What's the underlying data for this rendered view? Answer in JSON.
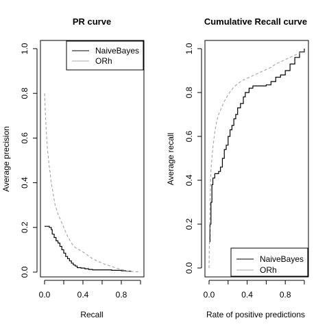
{
  "chart_data": [
    {
      "type": "line",
      "title": "PR curve",
      "xlabel": "Recall",
      "ylabel": "Average precision",
      "xlim": [
        0,
        1
      ],
      "ylim": [
        0,
        1
      ],
      "x_ticks": [
        0.0,
        0.4,
        0.8
      ],
      "x_tick_labels": [
        "0.0",
        "0.4",
        "0.8"
      ],
      "y_ticks": [
        0.0,
        0.2,
        0.4,
        0.6,
        0.8,
        1.0
      ],
      "y_tick_labels": [
        "0.0",
        "0.2",
        "0.4",
        "0.6",
        "0.8",
        "1.0"
      ],
      "legend": {
        "position": "top-right",
        "entries": [
          "NaiveBayes",
          "ORh"
        ]
      },
      "grid": false,
      "series": [
        {
          "name": "NaiveBayes",
          "color": "#000000",
          "dash": "solid",
          "step": true,
          "points": [
            [
              0.0,
              0.205
            ],
            [
              0.03,
              0.205
            ],
            [
              0.05,
              0.2
            ],
            [
              0.07,
              0.19
            ],
            [
              0.08,
              0.17
            ],
            [
              0.1,
              0.155
            ],
            [
              0.12,
              0.14
            ],
            [
              0.14,
              0.13
            ],
            [
              0.16,
              0.115
            ],
            [
              0.18,
              0.1
            ],
            [
              0.2,
              0.085
            ],
            [
              0.22,
              0.07
            ],
            [
              0.24,
              0.06
            ],
            [
              0.26,
              0.05
            ],
            [
              0.28,
              0.04
            ],
            [
              0.3,
              0.032
            ],
            [
              0.32,
              0.027
            ],
            [
              0.34,
              0.02
            ],
            [
              0.38,
              0.018
            ],
            [
              0.42,
              0.015
            ],
            [
              0.46,
              0.012
            ],
            [
              0.5,
              0.01
            ],
            [
              0.6,
              0.01
            ],
            [
              0.7,
              0.008
            ],
            [
              0.8,
              0.006
            ],
            [
              0.85,
              0.004
            ],
            [
              0.9,
              0.002
            ]
          ]
        },
        {
          "name": "ORh",
          "color": "#aaaaaa",
          "dash": "dashed",
          "step": false,
          "points": [
            [
              0.0,
              0.8
            ],
            [
              0.01,
              0.7
            ],
            [
              0.02,
              0.62
            ],
            [
              0.03,
              0.55
            ],
            [
              0.05,
              0.47
            ],
            [
              0.07,
              0.4
            ],
            [
              0.09,
              0.35
            ],
            [
              0.11,
              0.3
            ],
            [
              0.14,
              0.26
            ],
            [
              0.17,
              0.23
            ],
            [
              0.2,
              0.2
            ],
            [
              0.24,
              0.16
            ],
            [
              0.28,
              0.13
            ],
            [
              0.32,
              0.11
            ],
            [
              0.36,
              0.1
            ],
            [
              0.4,
              0.09
            ],
            [
              0.45,
              0.075
            ],
            [
              0.5,
              0.06
            ],
            [
              0.55,
              0.05
            ],
            [
              0.6,
              0.04
            ],
            [
              0.65,
              0.032
            ],
            [
              0.7,
              0.025
            ],
            [
              0.75,
              0.018
            ],
            [
              0.8,
              0.012
            ],
            [
              0.85,
              0.006
            ],
            [
              0.9,
              0.003
            ],
            [
              0.95,
              0.002
            ],
            [
              1.0,
              0.001
            ]
          ]
        }
      ]
    },
    {
      "type": "line",
      "title": "Cumulative Recall curve",
      "xlabel": "Rate of positive predictions",
      "ylabel": "Average recall",
      "xlim": [
        0,
        1
      ],
      "ylim": [
        0,
        1
      ],
      "x_ticks": [
        0.0,
        0.4,
        0.8
      ],
      "x_tick_labels": [
        "0.0",
        "0.4",
        "0.8"
      ],
      "y_ticks": [
        0.0,
        0.2,
        0.4,
        0.6,
        0.8,
        1.0
      ],
      "y_tick_labels": [
        "0.0",
        "0.2",
        "0.4",
        "0.6",
        "0.8",
        "1.0"
      ],
      "legend": {
        "position": "bottom-right",
        "entries": [
          "NaiveBayes",
          "ORh"
        ]
      },
      "grid": false,
      "series": [
        {
          "name": "NaiveBayes",
          "color": "#000000",
          "dash": "solid",
          "step": true,
          "points": [
            [
              0.0,
              0.12
            ],
            [
              0.01,
              0.2
            ],
            [
              0.02,
              0.3
            ],
            [
              0.03,
              0.38
            ],
            [
              0.04,
              0.41
            ],
            [
              0.06,
              0.43
            ],
            [
              0.1,
              0.44
            ],
            [
              0.12,
              0.46
            ],
            [
              0.14,
              0.5
            ],
            [
              0.16,
              0.54
            ],
            [
              0.18,
              0.56
            ],
            [
              0.2,
              0.6
            ],
            [
              0.22,
              0.63
            ],
            [
              0.24,
              0.65
            ],
            [
              0.26,
              0.68
            ],
            [
              0.28,
              0.7
            ],
            [
              0.3,
              0.73
            ],
            [
              0.33,
              0.75
            ],
            [
              0.36,
              0.78
            ],
            [
              0.38,
              0.8
            ],
            [
              0.42,
              0.82
            ],
            [
              0.46,
              0.83
            ],
            [
              0.5,
              0.83
            ],
            [
              0.55,
              0.83
            ],
            [
              0.6,
              0.835
            ],
            [
              0.65,
              0.85
            ],
            [
              0.7,
              0.87
            ],
            [
              0.75,
              0.88
            ],
            [
              0.8,
              0.9
            ],
            [
              0.85,
              0.93
            ],
            [
              0.9,
              0.96
            ],
            [
              0.95,
              0.985
            ],
            [
              1.0,
              1.0
            ]
          ]
        },
        {
          "name": "ORh",
          "color": "#aaaaaa",
          "dash": "dashed",
          "step": false,
          "points": [
            [
              0.0,
              0.0
            ],
            [
              0.01,
              0.3
            ],
            [
              0.02,
              0.45
            ],
            [
              0.04,
              0.55
            ],
            [
              0.06,
              0.62
            ],
            [
              0.08,
              0.67
            ],
            [
              0.1,
              0.7
            ],
            [
              0.13,
              0.73
            ],
            [
              0.16,
              0.76
            ],
            [
              0.2,
              0.79
            ],
            [
              0.25,
              0.82
            ],
            [
              0.3,
              0.84
            ],
            [
              0.35,
              0.855
            ],
            [
              0.4,
              0.865
            ],
            [
              0.45,
              0.875
            ],
            [
              0.5,
              0.885
            ],
            [
              0.55,
              0.895
            ],
            [
              0.6,
              0.905
            ],
            [
              0.65,
              0.915
            ],
            [
              0.7,
              0.93
            ],
            [
              0.75,
              0.94
            ],
            [
              0.8,
              0.95
            ],
            [
              0.85,
              0.96
            ],
            [
              0.9,
              0.97
            ],
            [
              0.95,
              0.98
            ],
            [
              1.0,
              0.99
            ]
          ]
        }
      ]
    }
  ]
}
